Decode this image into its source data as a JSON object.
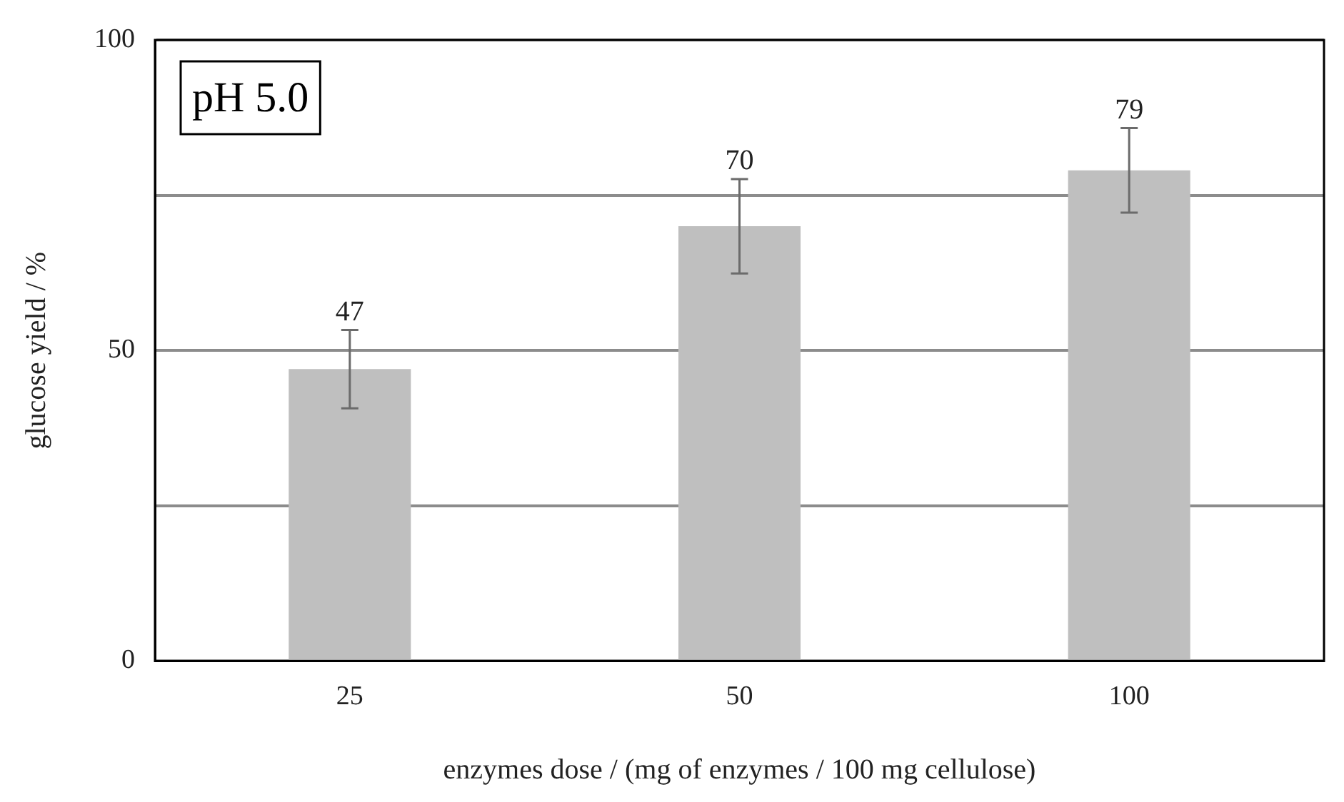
{
  "chart_data": {
    "type": "bar",
    "xlabel": "enzymes dose / (mg of enzymes / 100 mg cellulose)",
    "ylabel": "glucose yield / %",
    "categories": [
      "25",
      "50",
      "100"
    ],
    "values": [
      47,
      70,
      79
    ],
    "errors": [
      6.3,
      7.6,
      6.8
    ],
    "color": "#bfbfbf",
    "ylim": [
      0,
      100
    ],
    "yticks": [
      0,
      {
        "value": 25,
        "label": null
      },
      50,
      {
        "value": 75,
        "label": null
      },
      100
    ],
    "grid": "y",
    "data_labels": true,
    "annotations": [
      "pH 5.0"
    ]
  }
}
